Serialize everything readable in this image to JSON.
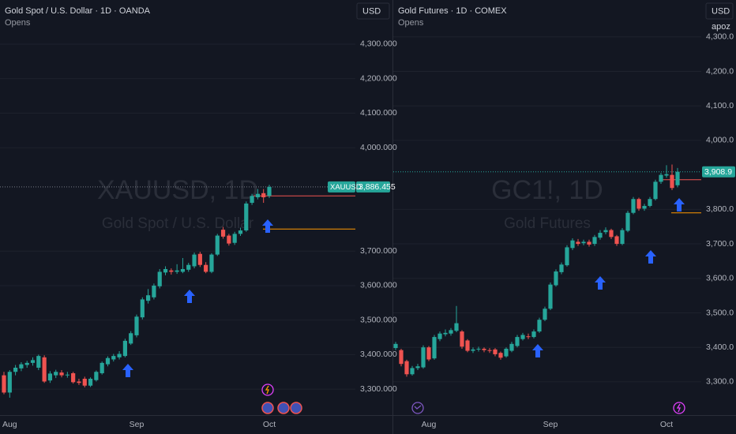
{
  "chart_data": [
    {
      "type": "candlestick",
      "title": "Gold Spot / U.S. Dollar · 1D · OANDA",
      "subtitle": "Opens",
      "watermark": "XAUUSD, 1D",
      "watermark_subtitle": "Gold Spot / U.S. Dollar",
      "currency": "USD",
      "symbol_label": "XAUUSD",
      "price_label": "3,886.455",
      "up_color": "#26a69a",
      "down_color": "#ef5350",
      "ylim": [
        3227,
        4428
      ],
      "yticks": [
        {
          "value": 3300,
          "label": "3,300.000"
        },
        {
          "value": 3400,
          "label": "3,400.000"
        },
        {
          "value": 3500,
          "label": "3,500.000"
        },
        {
          "value": 3600,
          "label": "3,600.000"
        },
        {
          "value": 3700,
          "label": "3,700.000"
        },
        {
          "value": 4000,
          "label": "4,000.000"
        },
        {
          "value": 4100,
          "label": "4,100.000"
        },
        {
          "value": 4200,
          "label": "4,200.000"
        },
        {
          "value": 4300,
          "label": "4,300.000"
        }
      ],
      "grid": true,
      "levels": [
        {
          "value": 3860,
          "color": "#ef5350"
        },
        {
          "value": 3764,
          "color": "#ff9800"
        }
      ],
      "categories": [
        null,
        "Aug",
        null,
        null,
        null,
        null,
        null,
        null,
        null,
        null,
        null,
        null,
        null,
        null,
        null,
        null,
        null,
        null,
        null,
        null,
        null,
        null,
        null,
        "Sep",
        null,
        null,
        null,
        null,
        null,
        null,
        null,
        null,
        null,
        null,
        null,
        null,
        null,
        null,
        null,
        null,
        null,
        null,
        null,
        null,
        null,
        null,
        "Oct"
      ],
      "open": [
        3340,
        3290,
        3350,
        3360,
        3370,
        3376,
        3362,
        3392,
        3325,
        3340,
        3348,
        3340,
        3346,
        3322,
        3330,
        3310,
        3326,
        3346,
        3372,
        3386,
        3392,
        3396,
        3432,
        3456,
        3508,
        3556,
        3566,
        3598,
        3638,
        3644,
        3640,
        3640,
        3646,
        3656,
        3692,
        3660,
        3640,
        3690,
        3762,
        3745,
        3724,
        3750,
        3760,
        3840,
        3856,
        3868,
        3860
      ],
      "high": [
        3350,
        3355,
        3370,
        3378,
        3382,
        3392,
        3400,
        3398,
        3352,
        3356,
        3355,
        3350,
        3350,
        3330,
        3336,
        3334,
        3354,
        3380,
        3395,
        3402,
        3410,
        3446,
        3468,
        3516,
        3566,
        3590,
        3606,
        3648,
        3656,
        3650,
        3662,
        3680,
        3666,
        3696,
        3698,
        3668,
        3694,
        3750,
        3770,
        3750,
        3756,
        3768,
        3844,
        3866,
        3880,
        3880,
        3892
      ],
      "low": [
        3285,
        3275,
        3340,
        3352,
        3362,
        3368,
        3355,
        3318,
        3318,
        3332,
        3334,
        3333,
        3316,
        3312,
        3305,
        3306,
        3322,
        3342,
        3366,
        3380,
        3386,
        3392,
        3428,
        3450,
        3502,
        3548,
        3560,
        3592,
        3630,
        3632,
        3634,
        3636,
        3640,
        3650,
        3654,
        3636,
        3636,
        3686,
        3736,
        3716,
        3718,
        3744,
        3756,
        3834,
        3850,
        3840,
        3854
      ],
      "close": [
        3290,
        3350,
        3362,
        3372,
        3376,
        3384,
        3396,
        3322,
        3345,
        3350,
        3340,
        3342,
        3320,
        3318,
        3310,
        3330,
        3350,
        3376,
        3390,
        3396,
        3402,
        3440,
        3462,
        3510,
        3560,
        3572,
        3600,
        3640,
        3648,
        3640,
        3644,
        3648,
        3660,
        3690,
        3660,
        3640,
        3690,
        3745,
        3742,
        3722,
        3750,
        3760,
        3838,
        3860,
        3866,
        3856,
        3886
      ]
    },
    {
      "type": "candlestick",
      "title": "Gold Futures · 1D · COMEX",
      "subtitle": "Opens",
      "watermark": "GC1!, 1D",
      "watermark_subtitle": "Gold Futures",
      "currency": "USD",
      "user_label": "apoz",
      "price_label": "3,908.9",
      "up_color": "#26a69a",
      "down_color": "#ef5350",
      "ylim": [
        3206,
        4407
      ],
      "yticks": [
        {
          "value": 3300,
          "label": "3,300.0"
        },
        {
          "value": 3400,
          "label": "3,400.0"
        },
        {
          "value": 3500,
          "label": "3,500.0"
        },
        {
          "value": 3600,
          "label": "3,600.0"
        },
        {
          "value": 3700,
          "label": "3,700.0"
        },
        {
          "value": 3800,
          "label": "3,800.0"
        },
        {
          "value": 4000,
          "label": "4,000.0"
        },
        {
          "value": 4100,
          "label": "4,100.0"
        },
        {
          "value": 4200,
          "label": "4,200.0"
        },
        {
          "value": 4300,
          "label": "4,300.0"
        }
      ],
      "grid": true,
      "levels": [
        {
          "value": 3886,
          "color": "#ef5350"
        },
        {
          "value": 3790,
          "color": "#ff9800"
        }
      ],
      "categories": [
        null,
        null,
        null,
        null,
        null,
        null,
        "Aug",
        null,
        null,
        null,
        null,
        null,
        null,
        null,
        null,
        null,
        null,
        null,
        null,
        null,
        null,
        null,
        null,
        null,
        null,
        null,
        null,
        null,
        "Sep",
        null,
        null,
        null,
        null,
        null,
        null,
        null,
        null,
        null,
        null,
        null,
        null,
        null,
        null,
        null,
        null,
        null,
        null,
        null,
        null,
        "Oct",
        null,
        null
      ],
      "open": [
        3398,
        3392,
        3360,
        3322,
        3340,
        3342,
        3400,
        3368,
        3424,
        3438,
        3440,
        3448,
        3446,
        3420,
        3390,
        3394,
        3396,
        3392,
        3394,
        3384,
        3374,
        3390,
        3404,
        3424,
        3432,
        3430,
        3446,
        3480,
        3512,
        3580,
        3618,
        3638,
        3688,
        3706,
        3702,
        3706,
        3700,
        3718,
        3734,
        3740,
        3722,
        3700,
        3738,
        3790,
        3830,
        3802,
        3810,
        3830,
        3880,
        3898,
        3900,
        3870
      ],
      "high": [
        3416,
        3396,
        3364,
        3346,
        3352,
        3406,
        3404,
        3436,
        3446,
        3452,
        3456,
        3520,
        3450,
        3424,
        3400,
        3402,
        3400,
        3398,
        3398,
        3388,
        3400,
        3416,
        3436,
        3442,
        3440,
        3452,
        3486,
        3518,
        3588,
        3626,
        3646,
        3696,
        3716,
        3714,
        3712,
        3712,
        3726,
        3740,
        3748,
        3744,
        3726,
        3746,
        3796,
        3836,
        3834,
        3816,
        3836,
        3886,
        3906,
        3928,
        3930,
        3920
      ],
      "low": [
        3392,
        3345,
        3315,
        3318,
        3334,
        3338,
        3360,
        3364,
        3418,
        3432,
        3434,
        3444,
        3396,
        3386,
        3384,
        3388,
        3386,
        3384,
        3374,
        3364,
        3370,
        3386,
        3400,
        3420,
        3424,
        3426,
        3442,
        3476,
        3508,
        3576,
        3612,
        3634,
        3682,
        3694,
        3696,
        3692,
        3694,
        3712,
        3728,
        3714,
        3694,
        3696,
        3734,
        3786,
        3796,
        3796,
        3806,
        3826,
        3874,
        3892,
        3856,
        3864
      ],
      "close": [
        3410,
        3352,
        3322,
        3340,
        3345,
        3400,
        3365,
        3430,
        3440,
        3442,
        3450,
        3470,
        3402,
        3390,
        3394,
        3396,
        3392,
        3390,
        3380,
        3370,
        3396,
        3410,
        3430,
        3436,
        3430,
        3446,
        3480,
        3512,
        3582,
        3620,
        3640,
        3690,
        3710,
        3700,
        3706,
        3698,
        3720,
        3732,
        3740,
        3720,
        3700,
        3740,
        3790,
        3830,
        3802,
        3810,
        3830,
        3880,
        3900,
        3902,
        3862,
        3909
      ]
    }
  ]
}
